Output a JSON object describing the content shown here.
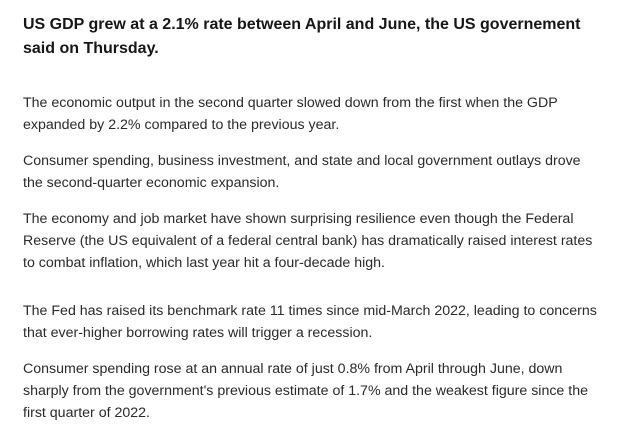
{
  "article": {
    "headline": "US GDP grew at a 2.1% rate between April and June, the US governement said on Thursday.",
    "paragraphs": [
      "The economic output in the second quarter slowed down from the first when the GDP expanded by 2.2% compared to the previous year.",
      "Consumer spending, business investment, and state and local government outlays drove the second-quarter economic expansion.",
      "The economy and job market have shown surprising resilience even though the Federal Reserve (the US equivalent of a federal central bank) has dramatically raised interest rates to combat inflation, which last year hit a four-decade high.",
      "The Fed has raised its benchmark rate 11 times since mid-March 2022, leading to concerns that ever-higher borrowing rates will trigger a recession.",
      "Consumer spending rose at an annual rate of just 0.8% from April through June, down sharply from the government's previous estimate of 1.7% and the weakest figure since the first quarter of 2022."
    ]
  }
}
